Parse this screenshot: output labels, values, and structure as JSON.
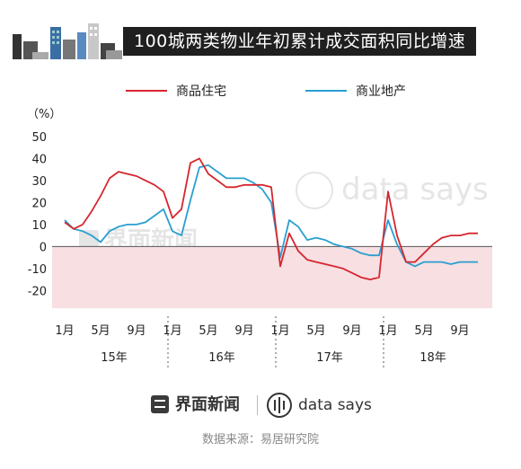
{
  "header": {
    "title": "100城两类物业年初累计成交面积同比增速"
  },
  "legend": [
    {
      "label": "商品住宅",
      "color": "#d6262e"
    },
    {
      "label": "商业地产",
      "color": "#2a9fd0"
    }
  ],
  "chart_data": {
    "type": "line",
    "ylabel": "（%）",
    "ylim": [
      -28,
      52
    ],
    "yticks": [
      -20,
      -10,
      0,
      10,
      20,
      30,
      40,
      50
    ],
    "x_count": 48,
    "month_ticks": [
      {
        "index": 0,
        "label": "1月"
      },
      {
        "index": 4,
        "label": "5月"
      },
      {
        "index": 8,
        "label": "9月"
      },
      {
        "index": 12,
        "label": "1月"
      },
      {
        "index": 16,
        "label": "5月"
      },
      {
        "index": 20,
        "label": "9月"
      },
      {
        "index": 24,
        "label": "1月"
      },
      {
        "index": 28,
        "label": "5月"
      },
      {
        "index": 32,
        "label": "9月"
      },
      {
        "index": 36,
        "label": "1月"
      },
      {
        "index": 40,
        "label": "5月"
      },
      {
        "index": 44,
        "label": "9月"
      }
    ],
    "years": [
      {
        "label": "15年",
        "start": 0,
        "end": 11
      },
      {
        "label": "16年",
        "start": 12,
        "end": 23
      },
      {
        "label": "17年",
        "start": 24,
        "end": 35
      },
      {
        "label": "18年",
        "start": 36,
        "end": 46
      }
    ],
    "shade_below_zero": true,
    "shade_color": "#f7dfe2",
    "series": [
      {
        "name": "商品住宅",
        "color": "#d6262e",
        "values": [
          11,
          8,
          10,
          16,
          23,
          31,
          34,
          33,
          32,
          30,
          28,
          25,
          13,
          17,
          38,
          40,
          33,
          30,
          27,
          27,
          28,
          28,
          28,
          27,
          -9,
          6,
          -2,
          -6,
          -7,
          -8,
          -9,
          -10,
          -12,
          -14,
          -15,
          -14,
          25,
          5,
          -7,
          -7,
          -3,
          1,
          4,
          5,
          5,
          6,
          6
        ]
      },
      {
        "name": "商业地产",
        "color": "#2a9fd0",
        "values": [
          12,
          8,
          7,
          5,
          2,
          7,
          9,
          10,
          10,
          11,
          14,
          17,
          7,
          5,
          21,
          36,
          37,
          34,
          31,
          31,
          31,
          29,
          26,
          20,
          -5,
          12,
          9,
          3,
          4,
          3,
          1,
          0,
          -1,
          -3,
          -4,
          -4,
          12,
          1,
          -7,
          -9,
          -7,
          -7,
          -7,
          -8,
          -7,
          -7,
          -7
        ]
      }
    ]
  },
  "footer": {
    "brand_cn": "界面新闻",
    "brand_en": "data says",
    "source": "数据来源：易居研究院"
  },
  "watermark": {
    "cn": "界面新闻",
    "en": "data says"
  }
}
